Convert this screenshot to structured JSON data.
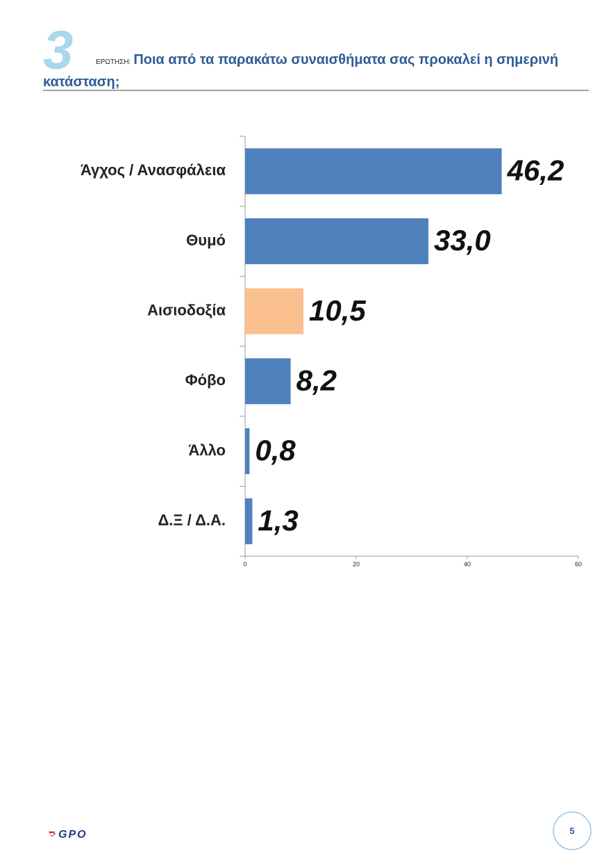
{
  "question_number": "3",
  "question_label": "ΕΡΩΤΗΣΗ:",
  "question": "Ποια από τα παρακάτω συναισθήματα σας προκαλεί η σημερινή κατάσταση;",
  "logo": "GPO",
  "page_number": "5",
  "chart_data": {
    "type": "hbar",
    "categories": [
      "Άγχος / Ανασφάλεια",
      "Θυμό",
      "Αισιοδοξία",
      "Φόβο",
      "Άλλο",
      "Δ.Ξ / Δ.Α."
    ],
    "values": [
      46.2,
      33.0,
      10.5,
      8.2,
      0.8,
      1.3
    ],
    "value_labels": [
      "46,2",
      "33,0",
      "10,5",
      "8,2",
      "0,8",
      "1,3"
    ],
    "colors": [
      "#4f81bd",
      "#4f81bd",
      "#fac090",
      "#4f81bd",
      "#4f81bd",
      "#4f81bd"
    ],
    "xlim": [
      0,
      60
    ],
    "xticks": [
      0,
      20,
      40,
      60
    ]
  }
}
